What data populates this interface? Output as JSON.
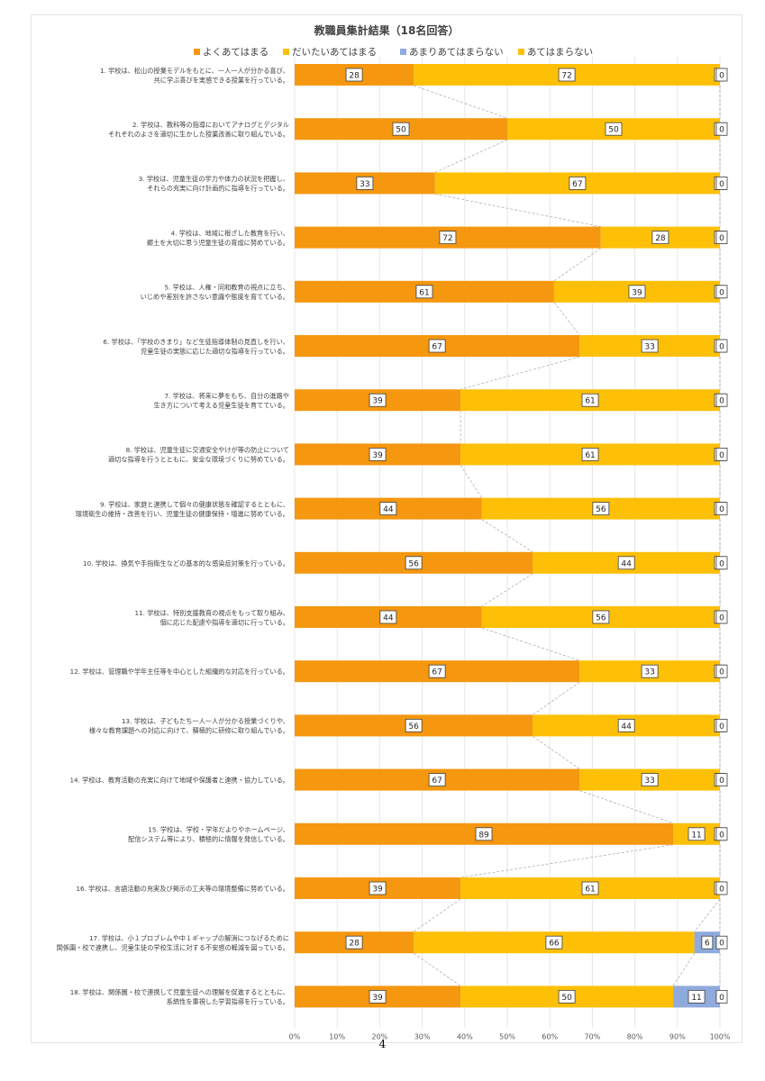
{
  "chart_data": {
    "type": "bar",
    "stacked": "percent",
    "orientation": "horizontal",
    "title": "教職員集計結果（18名回答）",
    "legend_position": "top",
    "xlim": [
      0,
      100
    ],
    "x_ticks": [
      "0%",
      "10%",
      "20%",
      "30%",
      "40%",
      "50%",
      "60%",
      "70%",
      "80%",
      "90%",
      "100%"
    ],
    "categories": [
      [
        "1. 学校は、松山の授業モデルをもとに、一人一人が分かる喜び、",
        "共に学ぶ喜びを実感できる授業を行っている。"
      ],
      [
        "2. 学校は、教科等の指導においてアナログとデジタル",
        "それぞれのよさを適切に生かした授業改善に取り組んでいる。"
      ],
      [
        "3. 学校は、児童生徒の学力や体力の状況を把握し、",
        "それらの充実に向け計画的に指導を行っている。"
      ],
      [
        "4. 学校は、地域に根ざした教育を行い、",
        "郷土を大切に思う児童生徒の育成に努めている。"
      ],
      [
        "5. 学校は、人権・同和教育の視点に立ち、",
        "いじめや差別を許さない意識や態度を育てている。"
      ],
      [
        "6. 学校は、「学校のきまり」など生徒指導体制の見直しを行い、",
        "児童生徒の実態に応じた適切な指導を行っている。"
      ],
      [
        "7. 学校は、将来に夢をもち、自分の進路や",
        "生き方について考える児童生徒を育てている。"
      ],
      [
        "8. 学校は、児童生徒に交通安全やけが等の防止について",
        "適切な指導を行うとともに、安全な環境づくりに努めている。"
      ],
      [
        "9. 学校は、家庭と連携して個々の健康状態を確認するとともに、",
        "環境衛生の維持・改善を行い、児童生徒の健康保持・増進に努めている。"
      ],
      [
        "10. 学校は、換気や手指衛生などの基本的な感染症対策を行っている。"
      ],
      [
        "11. 学校は、特別支援教育の視点をもって取り組み、",
        "個に応じた配慮や指導を適切に行っている。"
      ],
      [
        "12. 学校は、管理職や学年主任等を中心とした組織的な対応を行っている。"
      ],
      [
        "13. 学校は、子どもたち一人一人が分かる授業づくりや、",
        "様々な教育課題への対応に向けて、積極的に研修に取り組んでいる。"
      ],
      [
        "14. 学校は、教育活動の充実に向けて地域や保護者と連携・協力している。"
      ],
      [
        "15. 学校は、学校・学年だよりやホームページ、",
        "配信システム等により、積極的に情報を発信している。"
      ],
      [
        "16. 学校は、言語活動の充実及び掲示の工夫等の環境整備に努めている。"
      ],
      [
        "17. 学校は、小１プロブレムや中１ギャップの解消につなげるために",
        "関係園・校で連携し、児童生徒の学校生活に対する不安感の軽減を図っている。"
      ],
      [
        "18. 学校は、関係園・校で連携して児童生徒への理解を促進するとともに、",
        "系統性を重視した学習指導を行っている。"
      ]
    ],
    "series": [
      {
        "name": "よくあてはまる",
        "color": "#f5970f",
        "values": [
          28,
          50,
          33,
          72,
          61,
          67,
          39,
          39,
          44,
          56,
          44,
          67,
          56,
          67,
          89,
          39,
          28,
          39
        ]
      },
      {
        "name": "だいたいあてはまる",
        "color": "#fdc007",
        "values": [
          72,
          50,
          67,
          28,
          39,
          33,
          61,
          61,
          56,
          44,
          56,
          33,
          44,
          33,
          11,
          61,
          66,
          50
        ]
      },
      {
        "name": "あまりあてはまらない",
        "color": "#8faadc",
        "values": [
          0,
          0,
          0,
          0,
          0,
          0,
          0,
          0,
          0,
          0,
          0,
          0,
          0,
          0,
          0,
          0,
          6,
          11
        ]
      },
      {
        "name": "あてはまらない",
        "color": "#fdc007",
        "values": [
          0,
          0,
          0,
          0,
          0,
          0,
          0,
          0,
          0,
          0,
          0,
          0,
          0,
          0,
          0,
          0,
          0,
          0
        ]
      }
    ],
    "grid": true,
    "series_lines": true
  },
  "page": {
    "number": "4"
  }
}
